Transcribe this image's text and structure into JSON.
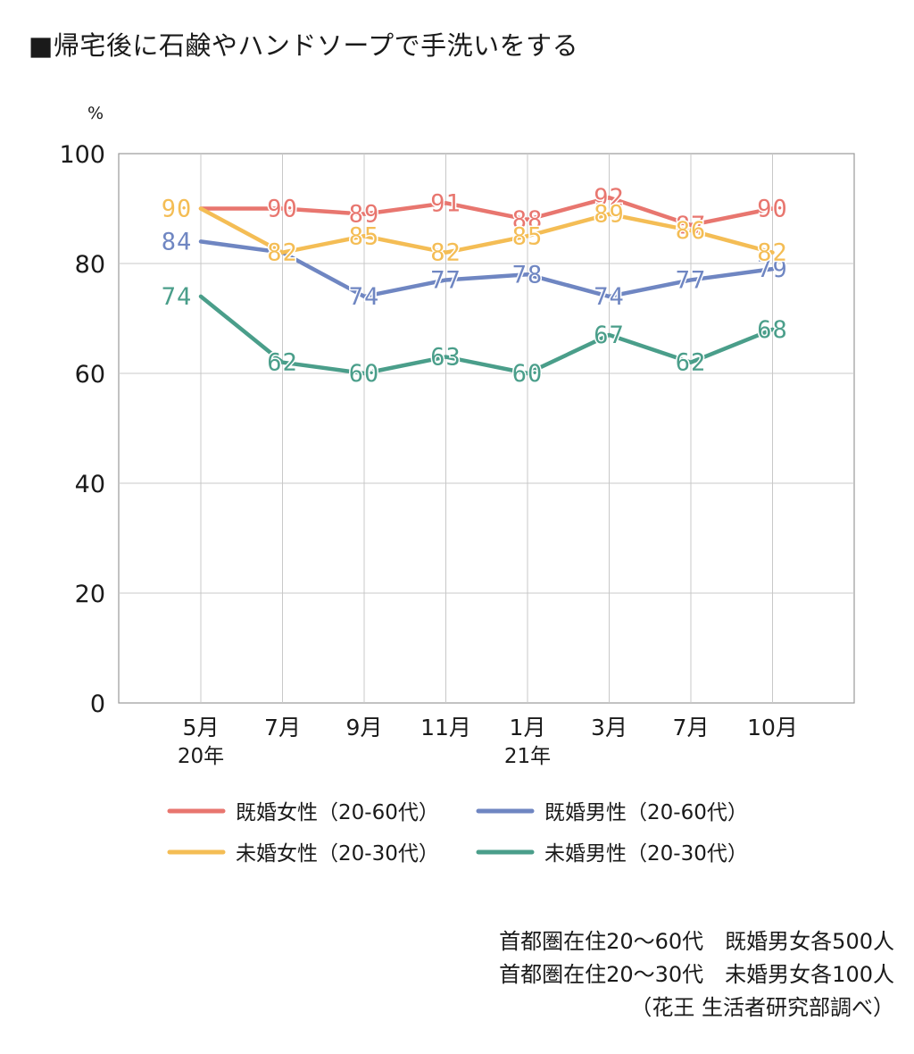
{
  "title": "■帰宅後に石鹸やハンドソープで手洗いをする",
  "notes": [
    "首都圏在住20〜60代　既婚男女各500人",
    "首都圏在住20〜30代　未婚男女各100人",
    "（花王 生活者研究部調べ）"
  ],
  "chart_data": {
    "type": "line",
    "ylabel": "%",
    "ylim": [
      0,
      100
    ],
    "yticks": [
      0,
      20,
      40,
      60,
      80,
      100
    ],
    "grid": true,
    "legend_position": "bottom",
    "categories": [
      "5月",
      "7月",
      "9月",
      "11月",
      "1月",
      "3月",
      "7月",
      "10月"
    ],
    "year_labels": [
      "20年",
      "",
      "",
      "",
      "21年",
      "",
      "",
      ""
    ],
    "series": [
      {
        "name": "既婚女性（20-60代）",
        "color": "#E8766F",
        "values": [
          90,
          90,
          89,
          91,
          88,
          92,
          87,
          90
        ]
      },
      {
        "name": "既婚男性（20-60代）",
        "color": "#6F86C2",
        "values": [
          84,
          82,
          74,
          77,
          78,
          74,
          77,
          79
        ]
      },
      {
        "name": "未婚女性（20-30代）",
        "color": "#F4BD55",
        "values": [
          90,
          82,
          85,
          82,
          85,
          89,
          86,
          82
        ]
      },
      {
        "name": "未婚男性（20-30代）",
        "color": "#4A9E8A",
        "values": [
          74,
          62,
          60,
          63,
          60,
          67,
          62,
          68
        ]
      }
    ]
  }
}
